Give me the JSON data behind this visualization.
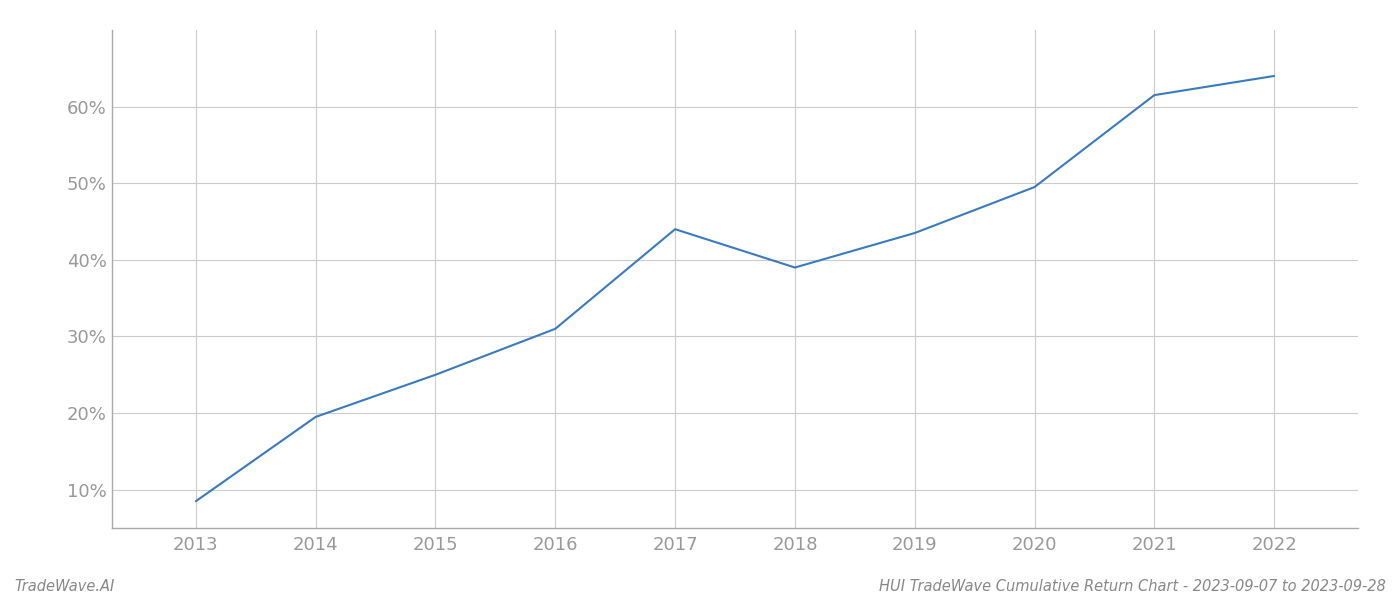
{
  "x_years": [
    2013,
    2014,
    2015,
    2016,
    2017,
    2018,
    2019,
    2020,
    2021,
    2022
  ],
  "y_values": [
    8.5,
    19.5,
    25.0,
    31.0,
    44.0,
    39.0,
    43.5,
    49.5,
    61.5,
    64.0
  ],
  "line_color": "#3a7abf",
  "line_width": 1.5,
  "grid_color": "#cccccc",
  "background_color": "#ffffff",
  "yticks": [
    10,
    20,
    30,
    40,
    50,
    60
  ],
  "ylim": [
    5,
    70
  ],
  "xlim": [
    2012.3,
    2022.7
  ],
  "xlabel": "",
  "ylabel": "",
  "footer_left": "TradeWave.AI",
  "footer_right": "HUI TradeWave Cumulative Return Chart - 2023-09-07 to 2023-09-28",
  "footer_fontsize": 10.5,
  "tick_fontsize": 13,
  "tick_color": "#999999",
  "spine_color": "#aaaaaa",
  "grid_linewidth": 0.8
}
